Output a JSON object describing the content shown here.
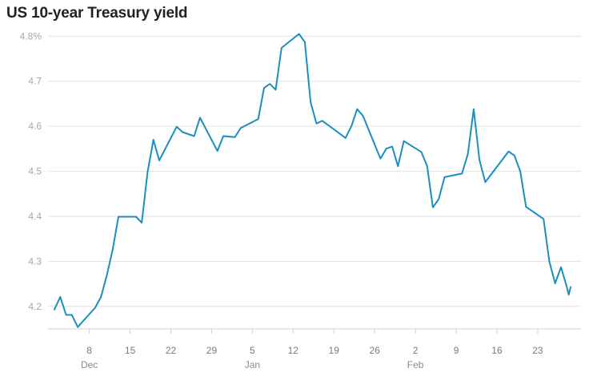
{
  "chart_data": {
    "type": "line",
    "title": "US 10-year Treasury yield",
    "xlabel": "",
    "ylabel": "",
    "y_ticks": [
      "4.8%",
      "4.7",
      "4.6",
      "4.5",
      "4.4",
      "4.3",
      "4.2"
    ],
    "ylim": [
      4.15,
      4.82
    ],
    "x_ticks": [
      {
        "label": "8",
        "date": "2024-12-08",
        "month": "Dec"
      },
      {
        "label": "15",
        "date": "2024-12-15"
      },
      {
        "label": "22",
        "date": "2024-12-22"
      },
      {
        "label": "29",
        "date": "2024-12-29"
      },
      {
        "label": "5",
        "date": "2025-01-05",
        "month": "Jan"
      },
      {
        "label": "12",
        "date": "2025-01-12"
      },
      {
        "label": "19",
        "date": "2025-01-19"
      },
      {
        "label": "26",
        "date": "2025-01-26"
      },
      {
        "label": "2",
        "date": "2025-02-02",
        "month": "Feb"
      },
      {
        "label": "9",
        "date": "2025-02-09"
      },
      {
        "label": "16",
        "date": "2025-02-16"
      },
      {
        "label": "23",
        "date": "2025-02-23"
      }
    ],
    "xlim": [
      "2024-12-02",
      "2025-02-27"
    ],
    "grid": true,
    "series": [
      {
        "color": "#1a8fbf",
        "points": [
          [
            "2024-12-02",
            4.193
          ],
          [
            "2024-12-03",
            4.221
          ],
          [
            "2024-12-04",
            4.181
          ],
          [
            "2024-12-05",
            4.181
          ],
          [
            "2024-12-06",
            4.154
          ],
          [
            "2024-12-09",
            4.197
          ],
          [
            "2024-12-10",
            4.221
          ],
          [
            "2024-12-11",
            4.269
          ],
          [
            "2024-12-12",
            4.326
          ],
          [
            "2024-12-13",
            4.399
          ],
          [
            "2024-12-16",
            4.399
          ],
          [
            "2024-12-17",
            4.386
          ],
          [
            "2024-12-18",
            4.498
          ],
          [
            "2024-12-19",
            4.57
          ],
          [
            "2024-12-20",
            4.524
          ],
          [
            "2024-12-23",
            4.599
          ],
          [
            "2024-12-24",
            4.587
          ],
          [
            "2024-12-26",
            4.578
          ],
          [
            "2024-12-27",
            4.619
          ],
          [
            "2024-12-30",
            4.545
          ],
          [
            "2024-12-31",
            4.578
          ],
          [
            "2025-01-02",
            4.576
          ],
          [
            "2025-01-03",
            4.596
          ],
          [
            "2025-01-06",
            4.616
          ],
          [
            "2025-01-07",
            4.685
          ],
          [
            "2025-01-08",
            4.694
          ],
          [
            "2025-01-09",
            4.681
          ],
          [
            "2025-01-10",
            4.774
          ],
          [
            "2025-01-13",
            4.805
          ],
          [
            "2025-01-14",
            4.787
          ],
          [
            "2025-01-15",
            4.654
          ],
          [
            "2025-01-16",
            4.606
          ],
          [
            "2025-01-17",
            4.612
          ],
          [
            "2025-01-21",
            4.574
          ],
          [
            "2025-01-22",
            4.6
          ],
          [
            "2025-01-23",
            4.638
          ],
          [
            "2025-01-24",
            4.623
          ],
          [
            "2025-01-27",
            4.528
          ],
          [
            "2025-01-28",
            4.55
          ],
          [
            "2025-01-29",
            4.555
          ],
          [
            "2025-01-30",
            4.511
          ],
          [
            "2025-01-31",
            4.567
          ],
          [
            "2025-02-03",
            4.543
          ],
          [
            "2025-02-04",
            4.512
          ],
          [
            "2025-02-05",
            4.42
          ],
          [
            "2025-02-06",
            4.438
          ],
          [
            "2025-02-07",
            4.487
          ],
          [
            "2025-02-10",
            4.495
          ],
          [
            "2025-02-11",
            4.538
          ],
          [
            "2025-02-12",
            4.638
          ],
          [
            "2025-02-13",
            4.525
          ],
          [
            "2025-02-14",
            4.476
          ],
          [
            "2025-02-18",
            4.544
          ],
          [
            "2025-02-19",
            4.535
          ],
          [
            "2025-02-20",
            4.5
          ],
          [
            "2025-02-21",
            4.421
          ],
          [
            "2025-02-24",
            4.394
          ],
          [
            "2025-02-25",
            4.3
          ],
          [
            "2025-02-26",
            4.251
          ],
          [
            "2025-02-27",
            4.287
          ],
          [
            "2025-02-28",
            4.243
          ],
          [
            "2025-02-28T08",
            4.226
          ],
          [
            "2025-02-28T16",
            4.243
          ]
        ]
      }
    ]
  }
}
